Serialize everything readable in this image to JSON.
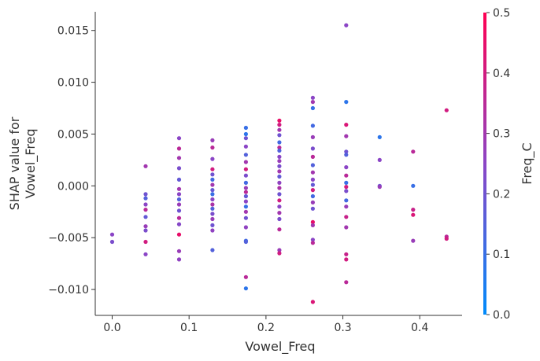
{
  "chart_data": {
    "type": "scatter",
    "title": "",
    "xlabel": "Vowel_Freq",
    "ylabel_lines": [
      "SHAP value for",
      "Vowel_Freq"
    ],
    "xlim": [
      -0.022,
      0.455
    ],
    "ylim": [
      -0.0125,
      0.0168
    ],
    "xticks": [
      {
        "v": 0.0,
        "label": "0.0"
      },
      {
        "v": 0.1,
        "label": "0.1"
      },
      {
        "v": 0.2,
        "label": "0.2"
      },
      {
        "v": 0.3,
        "label": "0.3"
      },
      {
        "v": 0.4,
        "label": "0.4"
      }
    ],
    "yticks": [
      {
        "v": 0.015,
        "label": "0.015"
      },
      {
        "v": 0.01,
        "label": "0.010"
      },
      {
        "v": 0.005,
        "label": "0.005"
      },
      {
        "v": 0.0,
        "label": "0.000"
      },
      {
        "v": -0.005,
        "label": "−0.005"
      },
      {
        "v": -0.01,
        "label": "−0.010"
      }
    ],
    "colorbar": {
      "label": "Freq_C",
      "min": 0.0,
      "max": 0.5,
      "ticks": [
        {
          "v": 0.5,
          "label": "0.5"
        },
        {
          "v": 0.4,
          "label": "0.4"
        },
        {
          "v": 0.3,
          "label": "0.3"
        },
        {
          "v": 0.2,
          "label": "0.2"
        },
        {
          "v": 0.1,
          "label": "0.1"
        },
        {
          "v": 0.0,
          "label": "0.0"
        }
      ],
      "colors": [
        "#008bfb",
        "#ff0052"
      ]
    },
    "points": [
      [
        0.0,
        -0.0047,
        0.25
      ],
      [
        0.0,
        -0.0054,
        0.22
      ],
      [
        0.0435,
        0.0019,
        0.3
      ],
      [
        0.0435,
        -0.0008,
        0.2
      ],
      [
        0.0435,
        -0.0012,
        0.15
      ],
      [
        0.0435,
        -0.0018,
        0.25
      ],
      [
        0.0435,
        -0.0023,
        0.35
      ],
      [
        0.0435,
        -0.003,
        0.18
      ],
      [
        0.0435,
        -0.0039,
        0.28
      ],
      [
        0.0435,
        -0.0043,
        0.22
      ],
      [
        0.0435,
        -0.0054,
        0.4
      ],
      [
        0.0435,
        -0.0066,
        0.25
      ],
      [
        0.087,
        0.0046,
        0.25
      ],
      [
        0.087,
        0.0036,
        0.35
      ],
      [
        0.087,
        0.0027,
        0.3
      ],
      [
        0.087,
        0.0017,
        0.22
      ],
      [
        0.087,
        0.0006,
        0.18
      ],
      [
        0.087,
        -0.0003,
        0.3
      ],
      [
        0.087,
        -0.0008,
        0.25
      ],
      [
        0.087,
        -0.0013,
        0.15
      ],
      [
        0.087,
        -0.0018,
        0.28
      ],
      [
        0.087,
        -0.0024,
        0.2
      ],
      [
        0.087,
        -0.0031,
        0.35
      ],
      [
        0.087,
        -0.0037,
        0.24
      ],
      [
        0.087,
        -0.0047,
        0.45
      ],
      [
        0.087,
        -0.0063,
        0.28
      ],
      [
        0.087,
        -0.0071,
        0.26
      ],
      [
        0.1304,
        0.0044,
        0.28
      ],
      [
        0.1304,
        0.0037,
        0.35
      ],
      [
        0.1304,
        0.0026,
        0.25
      ],
      [
        0.1304,
        0.0016,
        0.4
      ],
      [
        0.1304,
        0.0011,
        0.2
      ],
      [
        0.1304,
        0.0006,
        0.12
      ],
      [
        0.1304,
        0.0001,
        0.3
      ],
      [
        0.1304,
        -0.0004,
        0.18
      ],
      [
        0.1304,
        -0.0008,
        0.1
      ],
      [
        0.1304,
        -0.0013,
        0.25
      ],
      [
        0.1304,
        -0.0018,
        0.32
      ],
      [
        0.1304,
        -0.0022,
        0.15
      ],
      [
        0.1304,
        -0.0027,
        0.22
      ],
      [
        0.1304,
        -0.0032,
        0.28
      ],
      [
        0.1304,
        -0.0038,
        0.2
      ],
      [
        0.1304,
        -0.0043,
        0.26
      ],
      [
        0.1304,
        -0.0062,
        0.15
      ],
      [
        0.1739,
        0.0056,
        0.1
      ],
      [
        0.1739,
        0.005,
        0.08
      ],
      [
        0.1739,
        0.0046,
        0.2
      ],
      [
        0.1739,
        0.0038,
        0.25
      ],
      [
        0.1739,
        0.003,
        0.15
      ],
      [
        0.1739,
        0.0023,
        0.3
      ],
      [
        0.1739,
        0.0016,
        0.4
      ],
      [
        0.1739,
        0.001,
        0.22
      ],
      [
        0.1739,
        0.0003,
        0.12
      ],
      [
        0.1739,
        -0.0002,
        0.28
      ],
      [
        0.1739,
        -0.0006,
        0.35
      ],
      [
        0.1739,
        -0.001,
        0.18
      ],
      [
        0.1739,
        -0.0015,
        0.25
      ],
      [
        0.1739,
        -0.002,
        0.1
      ],
      [
        0.1739,
        -0.0025,
        0.3
      ],
      [
        0.1739,
        -0.0031,
        0.2
      ],
      [
        0.1739,
        -0.004,
        0.26
      ],
      [
        0.1739,
        -0.0053,
        0.12
      ],
      [
        0.1739,
        -0.0054,
        0.15
      ],
      [
        0.1739,
        -0.0088,
        0.35
      ],
      [
        0.1739,
        -0.0099,
        0.08
      ],
      [
        0.2174,
        0.0063,
        0.45
      ],
      [
        0.2174,
        0.0059,
        0.4
      ],
      [
        0.2174,
        0.0054,
        0.3
      ],
      [
        0.2174,
        0.0049,
        0.2
      ],
      [
        0.2174,
        0.0042,
        0.12
      ],
      [
        0.2174,
        0.0037,
        0.35
      ],
      [
        0.2174,
        0.0034,
        0.15
      ],
      [
        0.2174,
        0.0028,
        0.25
      ],
      [
        0.2174,
        0.0024,
        0.28
      ],
      [
        0.2174,
        0.0019,
        0.22
      ],
      [
        0.2174,
        0.0014,
        0.3
      ],
      [
        0.2174,
        0.0009,
        0.18
      ],
      [
        0.2174,
        0.0003,
        0.26
      ],
      [
        0.2174,
        -0.0002,
        0.32
      ],
      [
        0.2174,
        -0.0008,
        0.2
      ],
      [
        0.2174,
        -0.0014,
        0.4
      ],
      [
        0.2174,
        -0.002,
        0.25
      ],
      [
        0.2174,
        -0.0026,
        0.3
      ],
      [
        0.2174,
        -0.0032,
        0.22
      ],
      [
        0.2174,
        -0.0042,
        0.35
      ],
      [
        0.2174,
        -0.0062,
        0.28
      ],
      [
        0.2174,
        -0.0065,
        0.4
      ],
      [
        0.2609,
        0.0085,
        0.25
      ],
      [
        0.2609,
        0.0081,
        0.3
      ],
      [
        0.2609,
        0.0075,
        0.1
      ],
      [
        0.2609,
        0.0058,
        0.12
      ],
      [
        0.2609,
        0.0047,
        0.28
      ],
      [
        0.2609,
        0.0036,
        0.22
      ],
      [
        0.2609,
        0.0028,
        0.35
      ],
      [
        0.2609,
        0.002,
        0.15
      ],
      [
        0.2609,
        0.0013,
        0.3
      ],
      [
        0.2609,
        0.0006,
        0.25
      ],
      [
        0.2609,
        0.0001,
        0.18
      ],
      [
        0.2609,
        -0.0004,
        0.4
      ],
      [
        0.2609,
        -0.001,
        0.12
      ],
      [
        0.2609,
        -0.0016,
        0.28
      ],
      [
        0.2609,
        -0.0022,
        0.2
      ],
      [
        0.2609,
        -0.0035,
        0.45
      ],
      [
        0.2609,
        -0.0038,
        0.3
      ],
      [
        0.2609,
        -0.0052,
        0.25
      ],
      [
        0.2609,
        -0.0055,
        0.35
      ],
      [
        0.2609,
        -0.0112,
        0.42
      ],
      [
        0.3043,
        0.0155,
        0.25
      ],
      [
        0.3043,
        0.0081,
        0.08
      ],
      [
        0.3043,
        0.0059,
        0.42
      ],
      [
        0.3043,
        0.0048,
        0.3
      ],
      [
        0.3043,
        0.0033,
        0.2
      ],
      [
        0.3043,
        0.003,
        0.15
      ],
      [
        0.3043,
        0.0018,
        0.25
      ],
      [
        0.3043,
        0.001,
        0.35
      ],
      [
        0.3043,
        0.0003,
        0.1
      ],
      [
        0.3043,
        -0.0001,
        0.4
      ],
      [
        0.3043,
        -0.0005,
        0.22
      ],
      [
        0.3043,
        -0.0014,
        0.12
      ],
      [
        0.3043,
        -0.002,
        0.28
      ],
      [
        0.3043,
        -0.003,
        0.38
      ],
      [
        0.3043,
        -0.004,
        0.3
      ],
      [
        0.3043,
        -0.0066,
        0.38
      ],
      [
        0.3043,
        -0.0071,
        0.4
      ],
      [
        0.3043,
        -0.0093,
        0.35
      ],
      [
        0.3478,
        0.0047,
        0.08
      ],
      [
        0.3478,
        0.0025,
        0.25
      ],
      [
        0.3478,
        0.0,
        0.2
      ],
      [
        0.3478,
        -0.0001,
        0.28
      ],
      [
        0.3913,
        0.0033,
        0.35
      ],
      [
        0.3913,
        0.0,
        0.1
      ],
      [
        0.3913,
        -0.0023,
        0.38
      ],
      [
        0.3913,
        -0.0028,
        0.42
      ],
      [
        0.3913,
        -0.0053,
        0.28
      ],
      [
        0.4348,
        0.0073,
        0.4
      ],
      [
        0.4348,
        -0.0049,
        0.35
      ],
      [
        0.4348,
        -0.0051,
        0.4
      ]
    ]
  }
}
